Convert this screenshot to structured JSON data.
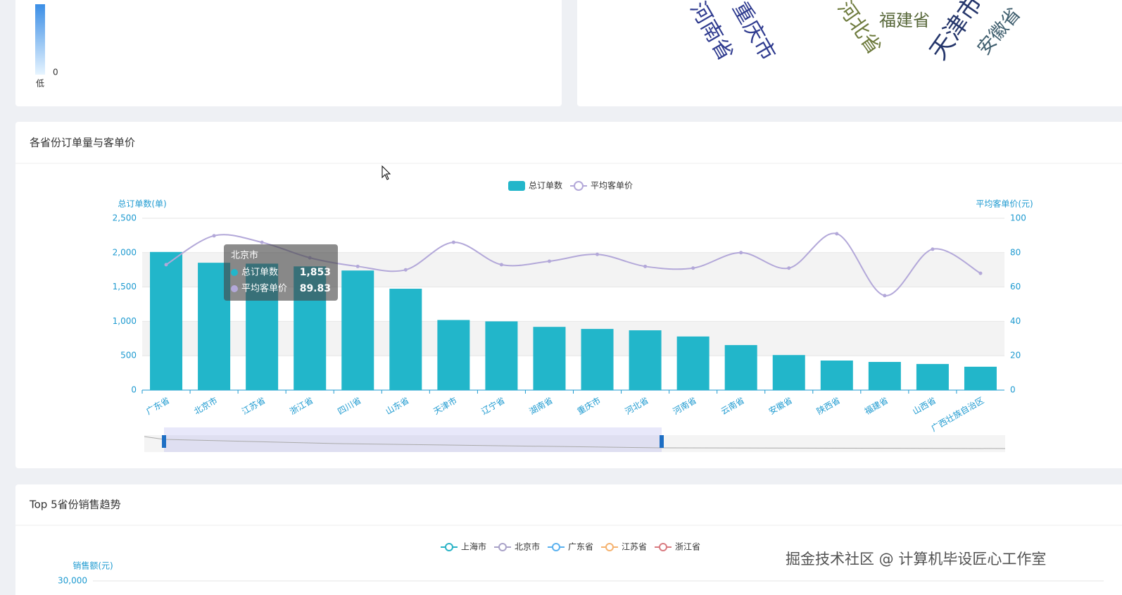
{
  "visual_map": {
    "min_value": 0,
    "min_label": "低"
  },
  "word_cloud": {
    "words": [
      {
        "text": "河南省",
        "color": "#2f3b8f"
      },
      {
        "text": "重庆市",
        "color": "#2f3b8f"
      },
      {
        "text": "河北省",
        "color": "#6d7a3c"
      },
      {
        "text": "福建省",
        "color": "#58683a"
      },
      {
        "text": "天津市",
        "color": "#25366b"
      },
      {
        "text": "安徽省",
        "color": "#3f5e6e"
      }
    ]
  },
  "panels": {
    "orders_title": "各省份订单量与客单价",
    "trend_title": "Top 5省份销售趋势"
  },
  "chart_data": [
    {
      "type": "bar",
      "categories": [
        "广东省",
        "北京市",
        "江苏省",
        "浙江省",
        "四川省",
        "山东省",
        "天津市",
        "辽宁省",
        "湖南省",
        "重庆市",
        "河北省",
        "河南省",
        "云南省",
        "安徽省",
        "陕西省",
        "福建省",
        "山西省",
        "广西壮族自治区"
      ],
      "series": [
        {
          "name": "总订单数",
          "type": "bar",
          "color": "#22b6ca",
          "values": [
            2010,
            1853,
            1840,
            1800,
            1740,
            1475,
            1020,
            1000,
            920,
            890,
            870,
            780,
            655,
            510,
            430,
            410,
            380,
            340
          ]
        },
        {
          "name": "平均客单价",
          "type": "line",
          "axis": "y2",
          "color": "#b3a8d9",
          "values": [
            73,
            89.83,
            86,
            77,
            72,
            70,
            86,
            73,
            75,
            79,
            72,
            71,
            80,
            71,
            91,
            55,
            82,
            68
          ]
        }
      ],
      "ylabel": "总订单数(单)",
      "y2label": "平均客单价(元)",
      "ylim": [
        0,
        2500
      ],
      "yticks": [
        0,
        500,
        {
          "value": 1000,
          "label": "1,000"
        },
        {
          "value": 1500,
          "label": "1,500"
        },
        {
          "value": 2000,
          "label": "2,000"
        },
        {
          "value": 2500,
          "label": "2,500"
        }
      ],
      "y2lim": [
        0,
        100
      ],
      "y2ticks": [
        0,
        20,
        40,
        60,
        80,
        100
      ],
      "split_area": true
    },
    {
      "type": "line",
      "series": [
        {
          "name": "上海市",
          "color": "#2ab3c6"
        },
        {
          "name": "北京市",
          "color": "#a9a2c8"
        },
        {
          "name": "广东省",
          "color": "#5ab1ef"
        },
        {
          "name": "江苏省",
          "color": "#f5b26f"
        },
        {
          "name": "浙江省",
          "color": "#d87a80"
        }
      ],
      "ylabel": "销售额(元)",
      "yticks": [
        {
          "value": 30000,
          "label": "30,000"
        }
      ]
    }
  ],
  "tooltip": {
    "title": "北京市",
    "rows": [
      {
        "name": "总订单数",
        "value": 1853,
        "label": "1,853"
      },
      {
        "name": "平均客单价",
        "value": 89.83,
        "label": "89.83"
      }
    ]
  },
  "watermark": "掘金技术社区 @ 计算机毕设匠心工作室"
}
